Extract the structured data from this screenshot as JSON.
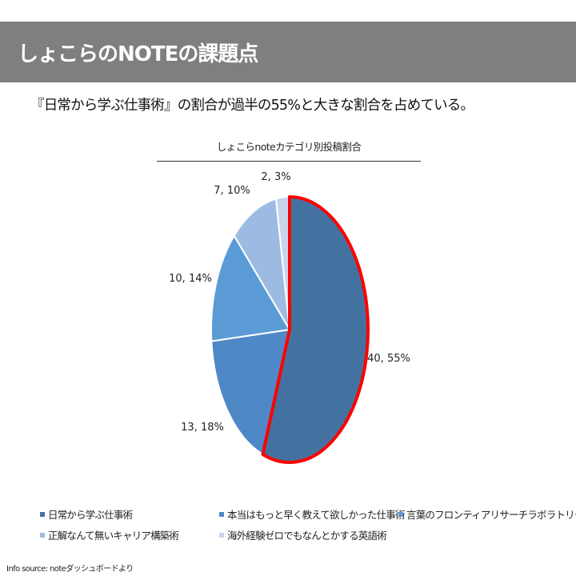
{
  "header": {
    "title": "しょこらのNOTEの課題点"
  },
  "subtitle": "『日常から学ぶ仕事術』の割合が過半の55%と大きな割合を占めている。",
  "source": "Info source: noteダッシュボードより",
  "chart_data": {
    "type": "pie",
    "title": "しょこらnoteカテゴリ別投稿割合",
    "legend_position": "bottom",
    "slices": [
      {
        "label": "日常から学ぶ仕事術",
        "value": 40,
        "percent": 55,
        "data_label": "40, 55%",
        "color": "#4472a0",
        "highlighted": true
      },
      {
        "label": "本当はもっと早く教えて欲しかった仕事術",
        "value": 13,
        "percent": 18,
        "data_label": "13, 18%",
        "color": "#4f88c6",
        "highlighted": false
      },
      {
        "label": "言葉のフロンティアリサーチラボラトリー",
        "value": 10,
        "percent": 14,
        "data_label": "10, 14%",
        "color": "#5b9bd5",
        "highlighted": false
      },
      {
        "label": "正解なんて無いキャリア構築術",
        "value": 7,
        "percent": 10,
        "data_label": "7, 10%",
        "color": "#9dbbe2",
        "highlighted": false
      },
      {
        "label": "海外経験ゼロでもなんとかする英語術",
        "value": 2,
        "percent": 3,
        "data_label": "2, 3%",
        "color": "#c6d5ec",
        "highlighted": false
      }
    ],
    "highlight_color": "#ff0000"
  }
}
